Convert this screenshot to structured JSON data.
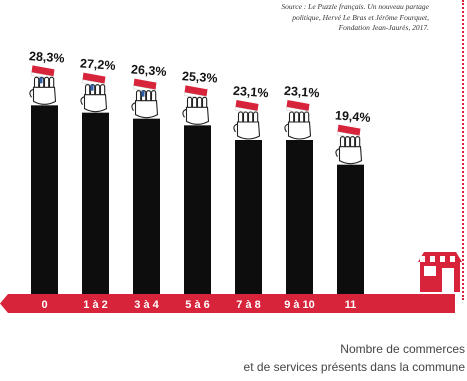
{
  "source_lines": [
    "Source : Le Puzzle français. Un nouveau partage",
    "politique, Hervé Le Bras et Jérôme Fourquet,",
    "Fondation Jean-Jaurès, 2017."
  ],
  "xlabel_lines": [
    "Nombre de commerces",
    "et de services présents dans la commune"
  ],
  "colors": {
    "bar": "#0d0d0d",
    "accent": "#d7243a",
    "blue": "#2f5fa8",
    "background": "#ffffff"
  },
  "icons": {
    "hand": "hand-ballot-icon",
    "shop": "shop-icon"
  },
  "chart_data": {
    "type": "bar",
    "categories": [
      "0",
      "1 à 2",
      "3 à 4",
      "5 à 6",
      "7 à 8",
      "9 à 10",
      "11"
    ],
    "values": [
      28.3,
      27.2,
      26.3,
      25.3,
      23.1,
      23.1,
      19.4
    ],
    "value_labels": [
      "28,3%",
      "27,2%",
      "26,3%",
      "25,3%",
      "23,1%",
      "23,1%",
      "19,4%"
    ],
    "unit": "%",
    "ylim": [
      0,
      30
    ],
    "grid": false,
    "legend": "none"
  }
}
